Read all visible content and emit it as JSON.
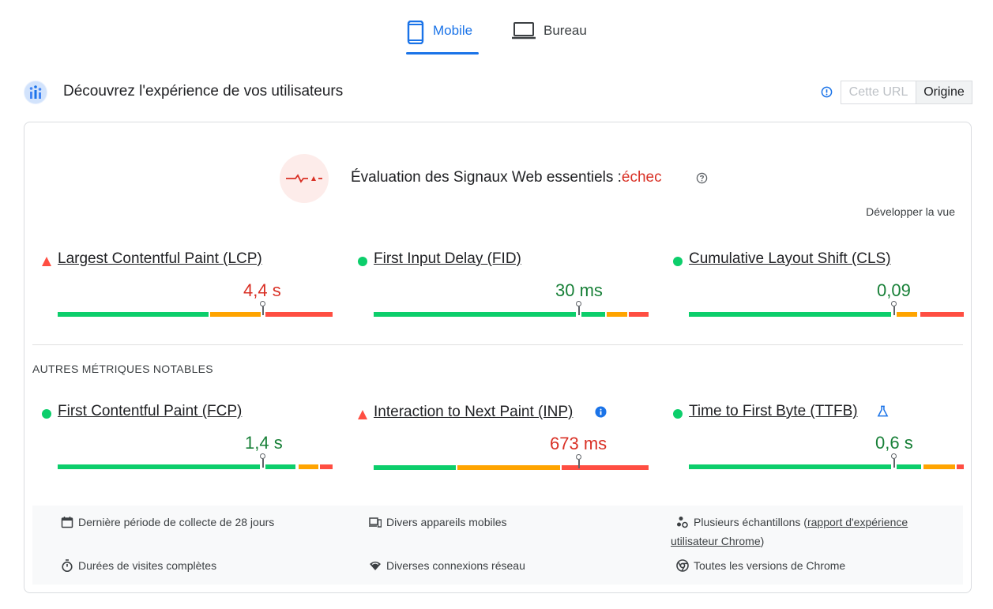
{
  "tabs": {
    "mobile": {
      "label": "Mobile",
      "icon": "smartphone-icon",
      "active": true
    },
    "desktop": {
      "label": "Bureau",
      "icon": "laptop-icon",
      "active": false
    }
  },
  "header": {
    "title": "Découvrez l'expérience de vos utilisateurs",
    "toggle_url": "Cette URL",
    "toggle_origin": "Origine",
    "selected": "Origine"
  },
  "assessment": {
    "title": "Évaluation des Signaux Web essentiels :",
    "status": "échec",
    "expand_label": "Développer la vue"
  },
  "core_metrics": [
    {
      "name": "Largest Contentful Paint (LCP)",
      "value": "4,4 s",
      "rating": "poor",
      "distribution": {
        "good": 0.56,
        "needs_improvement": 0.19,
        "poor": 0.25
      }
    },
    {
      "name": "First Input Delay (FID)",
      "value": "30 ms",
      "rating": "good",
      "distribution": {
        "good": 0.84,
        "needs_improvement": 0.08,
        "poor": 0.08
      }
    },
    {
      "name": "Cumulative Layout Shift (CLS)",
      "value": "0,09",
      "rating": "good",
      "distribution": {
        "good": 0.81,
        "needs_improvement": 0.09,
        "poor": 0.1
      }
    }
  ],
  "other_metrics_label": "AUTRES MÉTRIQUES NOTABLES",
  "other_metrics": [
    {
      "name": "First Contentful Paint (FCP)",
      "value": "1,4 s",
      "rating": "good",
      "distribution": {
        "good": 0.86,
        "needs_improvement": 0.08,
        "poor": 0.06
      }
    },
    {
      "name": "Interaction to Next Paint (INP)",
      "value": "673 ms",
      "rating": "poor",
      "distribution": {
        "good": 0.31,
        "needs_improvement": 0.38,
        "poor": 0.31
      }
    },
    {
      "name": "Time to First Byte (TTFB)",
      "value": "0,6 s",
      "rating": "good",
      "distribution": {
        "good": 0.85,
        "needs_improvement": 0.12,
        "poor": 0.03
      }
    }
  ],
  "footer": {
    "collection_period": "Dernière période de collecte de 28 jours",
    "devices": "Divers appareils mobiles",
    "samples_prefix": "Plusieurs échantillons (",
    "samples_link": "rapport d'expérience utilisateur Chrome",
    "samples_suffix": ")",
    "visit_durations": "Durées de visites complètes",
    "connections": "Diverses connexions réseau",
    "chrome_versions": "Toutes les versions de Chrome"
  },
  "colors": {
    "accent": "#1a73e8",
    "good": "#0cce6b",
    "needs_improvement": "#ffa400",
    "poor": "#ff4e42",
    "good_text": "#188038",
    "poor_text": "#d93025"
  }
}
